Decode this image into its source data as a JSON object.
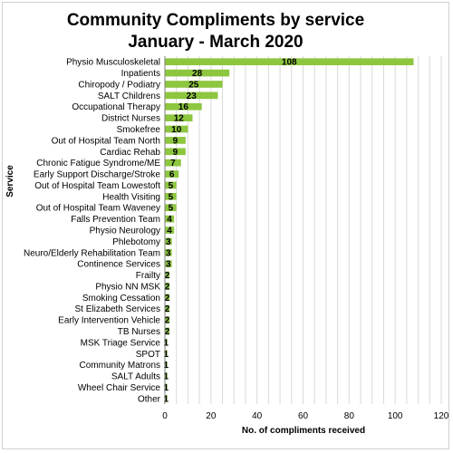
{
  "chart_data": {
    "type": "bar",
    "orientation": "horizontal",
    "title_line1": "Community Compliments by service",
    "title_line2": "January - March 2020",
    "xlabel": "No. of compliments received",
    "ylabel": "Service",
    "xlim": [
      0,
      120
    ],
    "xticks": [
      0,
      20,
      40,
      60,
      80,
      100,
      120
    ],
    "grid": true,
    "bar_color": "#8dc63f",
    "categories": [
      "Physio Musculoskeletal",
      "Inpatients",
      "Chiropody / Podiatry",
      "SALT Childrens",
      "Occupational Therapy",
      "District Nurses",
      "Smokefree",
      "Out of Hospital Team North",
      "Cardiac Rehab",
      "Chronic Fatigue Syndrome/ME",
      "Early Support Discharge/Stroke",
      "Out of Hospital Team Lowestoft",
      "Health Visiting",
      "Out of Hospital Team Waveney",
      "Falls Prevention Team",
      "Physio Neurology",
      "Phlebotomy",
      "Neuro/Elderly Rehabilitation Team",
      "Continence Services",
      "Frailty",
      "Physio NN MSK",
      "Smoking Cessation",
      "St Elizabeth Services",
      "Early Intervention Vehicle",
      "TB Nurses",
      "MSK Triage Service",
      "SPOT",
      "Community Matrons",
      "SALT Adults",
      "Wheel Chair Service",
      "Other"
    ],
    "values": [
      108,
      28,
      25,
      23,
      16,
      12,
      10,
      9,
      9,
      7,
      6,
      5,
      5,
      5,
      4,
      4,
      3,
      3,
      3,
      2,
      2,
      2,
      2,
      2,
      2,
      1,
      1,
      1,
      1,
      1,
      1
    ]
  }
}
